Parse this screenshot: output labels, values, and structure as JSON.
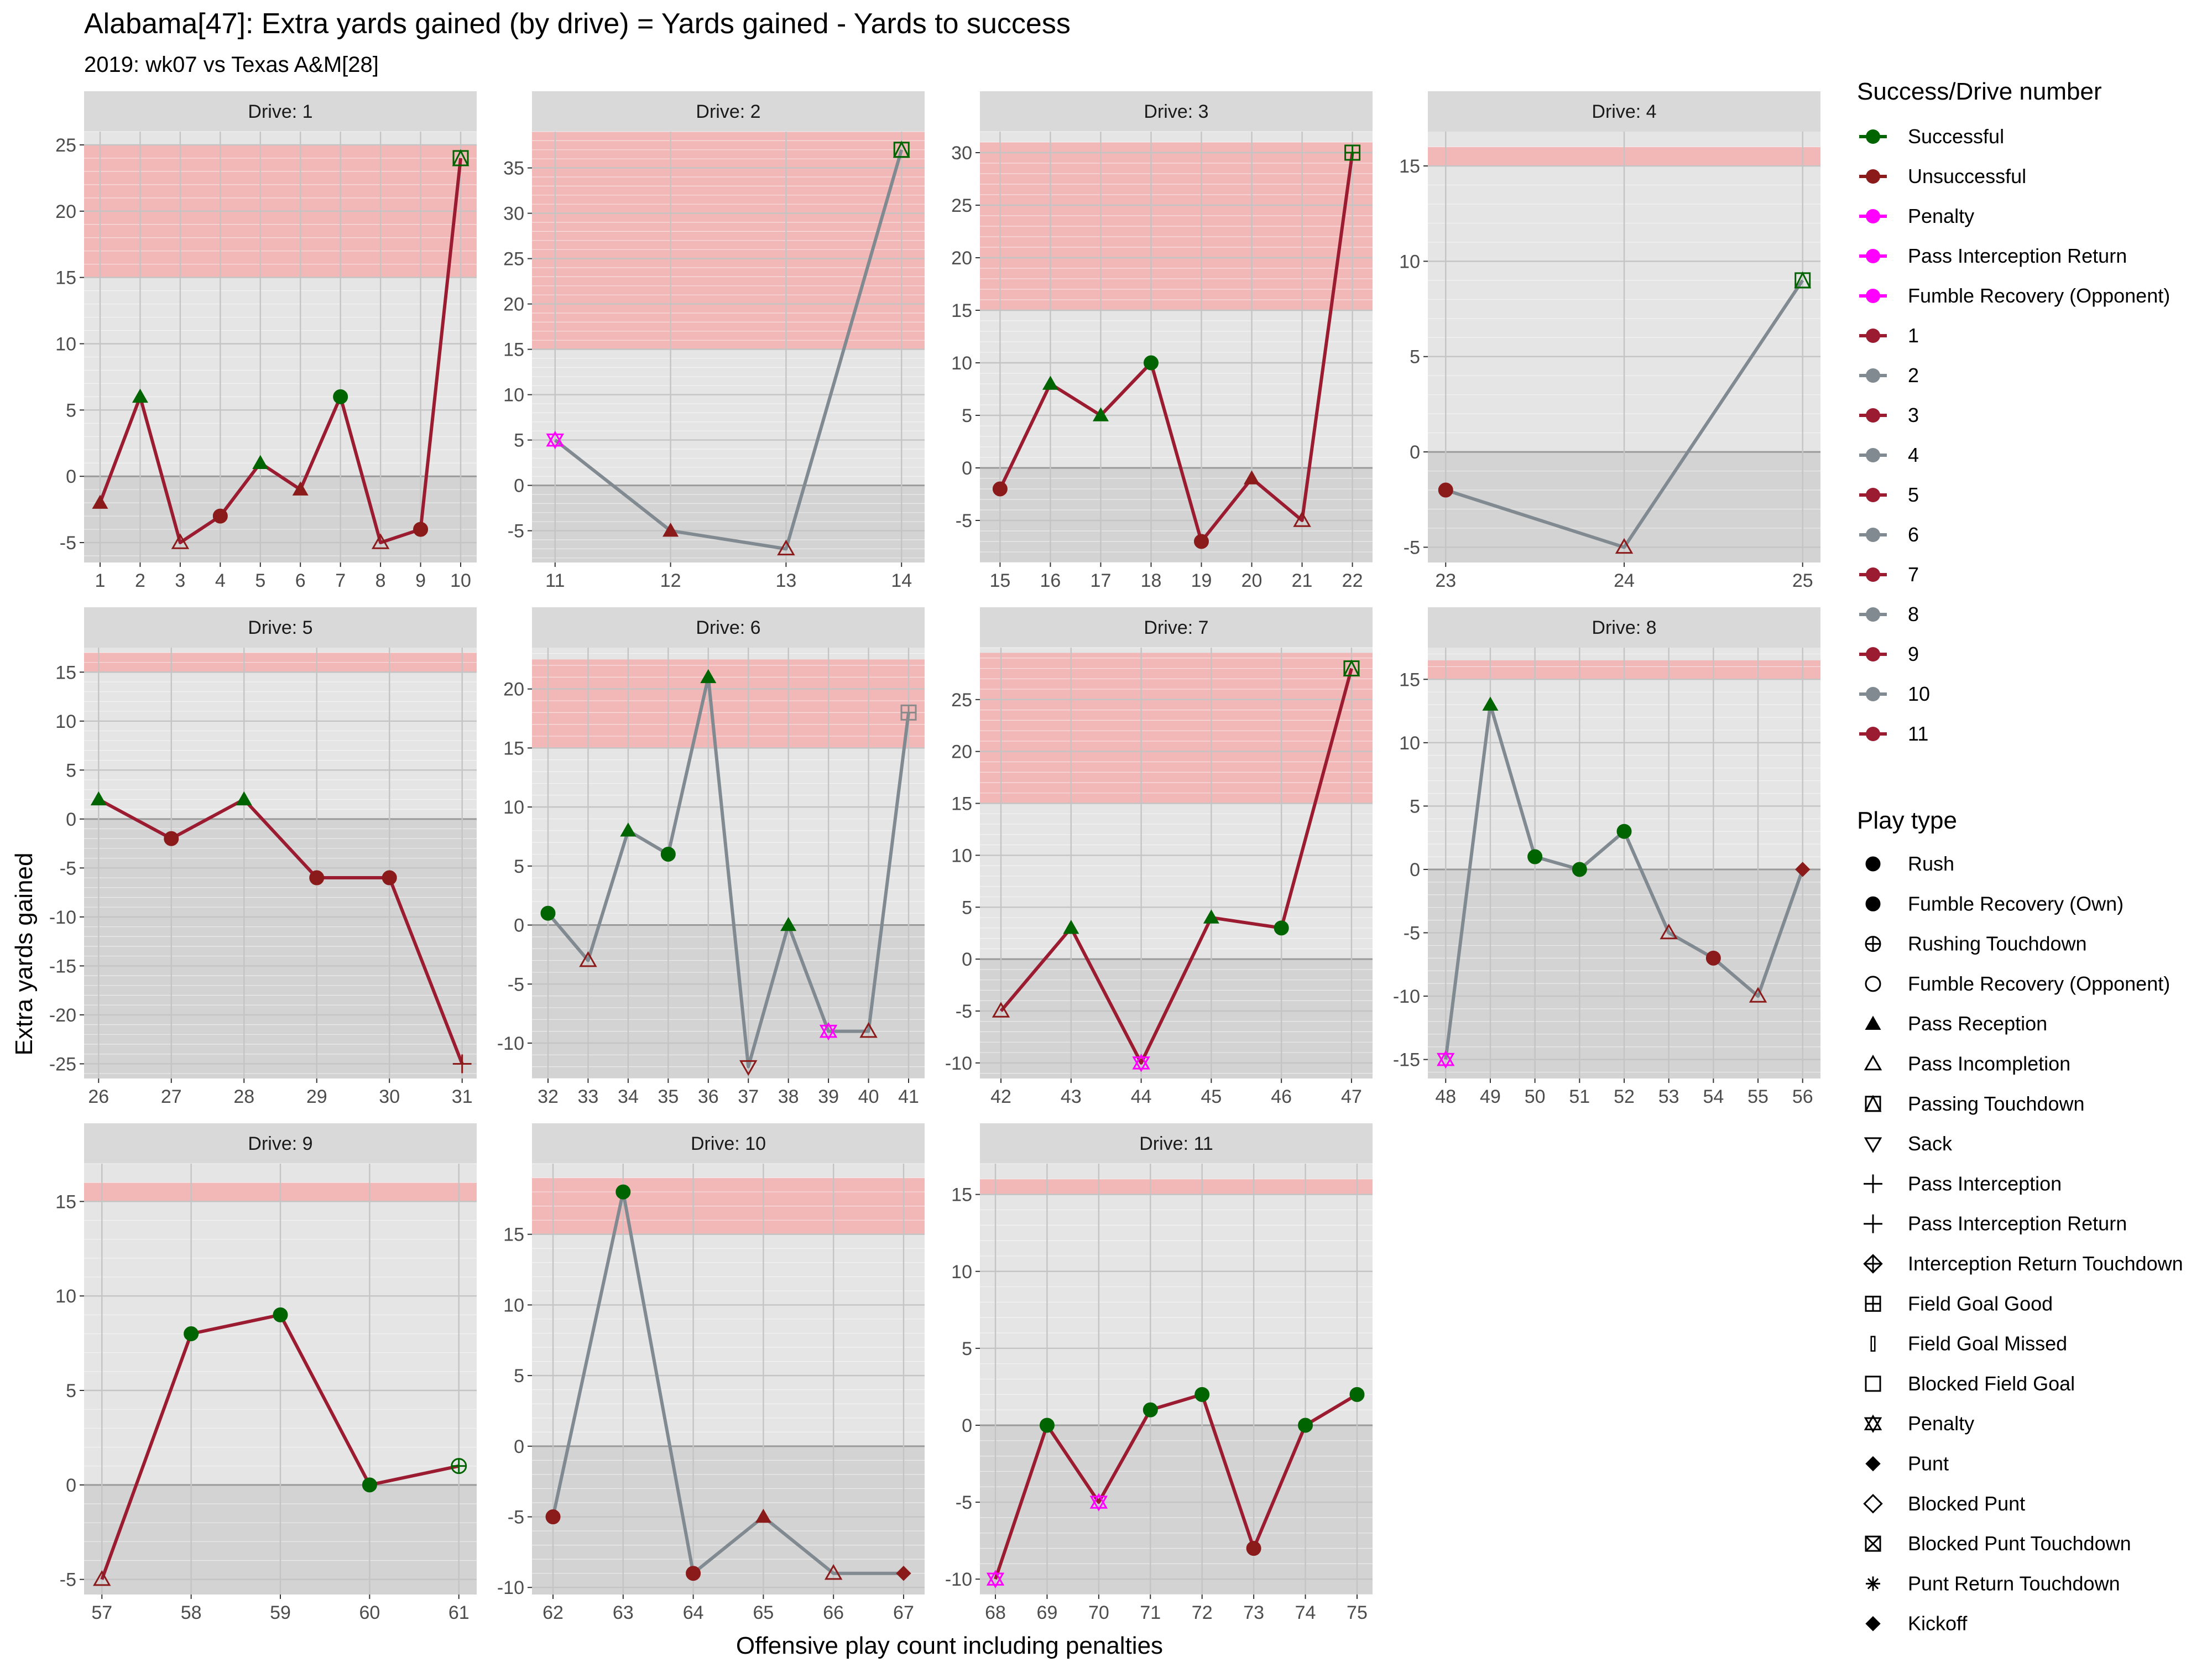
{
  "title": "Alabama[47]: Extra yards gained (by drive) = Yards gained - Yards to success",
  "subtitle": "2019: wk07 vs Texas A&M[28]",
  "xlabel": "Offensive play count including penalties",
  "ylabel": "Extra yards gained",
  "colors": {
    "successful": "#006400",
    "unsuccessful": "#8B1A1A",
    "penalty": "#FF00FF",
    "odd_drive_line": "#9B1B30",
    "even_drive_line": "#808A90",
    "panel_bg": "#E5E5E5",
    "strip_bg": "#D9D9D9",
    "success_band": "#F2B8B8",
    "below_zero": "#D3D3D3"
  },
  "legend": {
    "success_title": "Success/Drive number",
    "success_items": [
      {
        "label": "Successful",
        "color": "#006400",
        "dot": true
      },
      {
        "label": "Unsuccessful",
        "color": "#8B1A1A",
        "dot": true
      },
      {
        "label": "Penalty",
        "color": "#FF00FF",
        "dot": true
      },
      {
        "label": "Pass Interception Return",
        "color": "#FF00FF",
        "dot": true
      },
      {
        "label": "Fumble Recovery (Opponent)",
        "color": "#FF00FF",
        "dot": true
      },
      {
        "label": "1",
        "color": "#9B1B30",
        "dot": true
      },
      {
        "label": "2",
        "color": "#808A90",
        "dot": true
      },
      {
        "label": "3",
        "color": "#9B1B30",
        "dot": true
      },
      {
        "label": "4",
        "color": "#808A90",
        "dot": true
      },
      {
        "label": "5",
        "color": "#9B1B30",
        "dot": true
      },
      {
        "label": "6",
        "color": "#808A90",
        "dot": true
      },
      {
        "label": "7",
        "color": "#9B1B30",
        "dot": true
      },
      {
        "label": "8",
        "color": "#808A90",
        "dot": true
      },
      {
        "label": "9",
        "color": "#9B1B30",
        "dot": true
      },
      {
        "label": "10",
        "color": "#808A90",
        "dot": true
      },
      {
        "label": "11",
        "color": "#9B1B30",
        "dot": true
      }
    ],
    "playtype_title": "Play type",
    "playtype_items": [
      {
        "label": "Rush",
        "shape": "circle"
      },
      {
        "label": "Fumble Recovery (Own)",
        "shape": "circle"
      },
      {
        "label": "Rushing Touchdown",
        "shape": "circleplus"
      },
      {
        "label": "Fumble Recovery (Opponent)",
        "shape": "circleopen"
      },
      {
        "label": "Pass Reception",
        "shape": "triangle"
      },
      {
        "label": "Pass Incompletion",
        "shape": "triangleopen"
      },
      {
        "label": "Passing Touchdown",
        "shape": "trianglesquare"
      },
      {
        "label": "Sack",
        "shape": "triangledown"
      },
      {
        "label": "Pass Interception",
        "shape": "plus"
      },
      {
        "label": "Pass Interception Return",
        "shape": "plus"
      },
      {
        "label": "Interception Return Touchdown",
        "shape": "diamondplus"
      },
      {
        "label": "Field Goal Good",
        "shape": "squareplus"
      },
      {
        "label": "Field Goal Missed",
        "shape": "bar"
      },
      {
        "label": "Blocked Field Goal",
        "shape": "squareopen"
      },
      {
        "label": "Penalty",
        "shape": "star"
      },
      {
        "label": "Punt",
        "shape": "diamond"
      },
      {
        "label": "Blocked Punt",
        "shape": "diamondopen"
      },
      {
        "label": "Blocked Punt Touchdown",
        "shape": "squarecross"
      },
      {
        "label": "Punt Return Touchdown",
        "shape": "asterisk"
      },
      {
        "label": "Kickoff",
        "shape": "diamond"
      }
    ]
  },
  "chart_data": {
    "type": "line",
    "facet_label_prefix": "Drive: ",
    "success_band_from": 15,
    "panels": [
      {
        "drive": 1,
        "strip": "Drive: 1",
        "ylim": [
          -6.5,
          26
        ],
        "yticks": [
          -5,
          0,
          5,
          10,
          15,
          20,
          25
        ],
        "xlim": [
          0.6,
          10.4
        ],
        "xticks": [
          1,
          2,
          3,
          4,
          5,
          6,
          7,
          8,
          9,
          10
        ],
        "band_top": 25,
        "points": [
          {
            "x": 1,
            "y": -2,
            "result": "unsuccessful",
            "play": "triangle"
          },
          {
            "x": 2,
            "y": 6,
            "result": "successful",
            "play": "triangle"
          },
          {
            "x": 3,
            "y": -5,
            "result": "unsuccessful",
            "play": "triangleopen"
          },
          {
            "x": 4,
            "y": -3,
            "result": "unsuccessful",
            "play": "circle"
          },
          {
            "x": 5,
            "y": 1,
            "result": "successful",
            "play": "triangle"
          },
          {
            "x": 6,
            "y": -1,
            "result": "unsuccessful",
            "play": "triangle"
          },
          {
            "x": 7,
            "y": 6,
            "result": "successful",
            "play": "circle"
          },
          {
            "x": 8,
            "y": -5,
            "result": "unsuccessful",
            "play": "triangleopen"
          },
          {
            "x": 9,
            "y": -4,
            "result": "unsuccessful",
            "play": "circle"
          },
          {
            "x": 10,
            "y": 24,
            "result": "successful",
            "play": "trianglesquare"
          }
        ]
      },
      {
        "drive": 2,
        "strip": "Drive: 2",
        "ylim": [
          -8.5,
          39
        ],
        "yticks": [
          -5,
          0,
          5,
          10,
          15,
          20,
          25,
          30,
          35
        ],
        "xlim": [
          10.8,
          14.2
        ],
        "xticks": [
          11,
          12,
          13,
          14
        ],
        "band_top": 39,
        "points": [
          {
            "x": 11,
            "y": 5,
            "result": "penalty",
            "play": "star"
          },
          {
            "x": 12,
            "y": -5,
            "result": "unsuccessful",
            "play": "triangle"
          },
          {
            "x": 13,
            "y": -7,
            "result": "unsuccessful",
            "play": "triangleopen"
          },
          {
            "x": 14,
            "y": 37,
            "result": "successful",
            "play": "trianglesquare"
          }
        ]
      },
      {
        "drive": 3,
        "strip": "Drive: 3",
        "ylim": [
          -9,
          32
        ],
        "yticks": [
          -5,
          0,
          5,
          10,
          15,
          20,
          25,
          30
        ],
        "xlim": [
          14.6,
          22.4
        ],
        "xticks": [
          15,
          16,
          17,
          18,
          19,
          20,
          21,
          22
        ],
        "band_top": 31,
        "points": [
          {
            "x": 15,
            "y": -2,
            "result": "unsuccessful",
            "play": "circle"
          },
          {
            "x": 16,
            "y": 8,
            "result": "successful",
            "play": "triangle"
          },
          {
            "x": 17,
            "y": 5,
            "result": "successful",
            "play": "triangle"
          },
          {
            "x": 18,
            "y": 10,
            "result": "successful",
            "play": "circle"
          },
          {
            "x": 19,
            "y": -7,
            "result": "unsuccessful",
            "play": "circle"
          },
          {
            "x": 20,
            "y": -1,
            "result": "unsuccessful",
            "play": "triangle"
          },
          {
            "x": 21,
            "y": -5,
            "result": "unsuccessful",
            "play": "triangleopen"
          },
          {
            "x": 22,
            "y": 30,
            "result": "successful",
            "play": "squareplus"
          }
        ]
      },
      {
        "drive": 4,
        "strip": "Drive: 4",
        "ylim": [
          -5.8,
          16.8
        ],
        "yticks": [
          -5,
          0,
          5,
          10,
          15
        ],
        "xlim": [
          22.9,
          25.1
        ],
        "xticks": [
          23,
          24,
          25
        ],
        "band_top": 16,
        "points": [
          {
            "x": 23,
            "y": -2,
            "result": "unsuccessful",
            "play": "circle"
          },
          {
            "x": 24,
            "y": -5,
            "result": "unsuccessful",
            "play": "triangleopen"
          },
          {
            "x": 25,
            "y": 9,
            "result": "successful",
            "play": "trianglesquare"
          }
        ]
      },
      {
        "drive": 5,
        "strip": "Drive: 5",
        "ylim": [
          -26.5,
          17.5
        ],
        "yticks": [
          -25,
          -20,
          -15,
          -10,
          -5,
          0,
          5,
          10,
          15
        ],
        "xlim": [
          25.8,
          31.2
        ],
        "xticks": [
          26,
          27,
          28,
          29,
          30,
          31
        ],
        "band_top": 17,
        "points": [
          {
            "x": 26,
            "y": 2,
            "result": "successful",
            "play": "triangle"
          },
          {
            "x": 27,
            "y": -2,
            "result": "unsuccessful",
            "play": "circle"
          },
          {
            "x": 28,
            "y": 2,
            "result": "successful",
            "play": "triangle"
          },
          {
            "x": 29,
            "y": -6,
            "result": "unsuccessful",
            "play": "circle"
          },
          {
            "x": 30,
            "y": -6,
            "result": "unsuccessful",
            "play": "circle"
          },
          {
            "x": 31,
            "y": -25,
            "result": "unsuccessful",
            "play": "plus"
          }
        ]
      },
      {
        "drive": 6,
        "strip": "Drive: 6",
        "ylim": [
          -13,
          23.5
        ],
        "yticks": [
          -10,
          -5,
          0,
          5,
          10,
          15,
          20
        ],
        "xlim": [
          31.6,
          41.4
        ],
        "xticks": [
          32,
          33,
          34,
          35,
          36,
          37,
          38,
          39,
          40,
          41
        ],
        "band_top": 22.5,
        "points": [
          {
            "x": 32,
            "y": 1,
            "result": "successful",
            "play": "circle"
          },
          {
            "x": 33,
            "y": -3,
            "result": "unsuccessful",
            "play": "triangleopen"
          },
          {
            "x": 34,
            "y": 8,
            "result": "successful",
            "play": "triangle"
          },
          {
            "x": 35,
            "y": 6,
            "result": "successful",
            "play": "circle"
          },
          {
            "x": 36,
            "y": 21,
            "result": "successful",
            "play": "triangle"
          },
          {
            "x": 37,
            "y": -12,
            "result": "unsuccessful",
            "play": "triangledown"
          },
          {
            "x": 38,
            "y": 0,
            "result": "successful",
            "play": "triangle"
          },
          {
            "x": 39,
            "y": -9,
            "result": "penalty",
            "play": "star"
          },
          {
            "x": 40,
            "y": -9,
            "result": "unsuccessful",
            "play": "triangleopen"
          },
          {
            "x": 41,
            "y": 18,
            "result": "unsuccessful",
            "play": "squareplus"
          }
        ]
      },
      {
        "drive": 7,
        "strip": "Drive: 7",
        "ylim": [
          -11.5,
          30
        ],
        "yticks": [
          -10,
          -5,
          0,
          5,
          10,
          15,
          20,
          25
        ],
        "xlim": [
          41.7,
          47.3
        ],
        "xticks": [
          42,
          43,
          44,
          45,
          46,
          47
        ],
        "band_top": 29.5,
        "points": [
          {
            "x": 42,
            "y": -5,
            "result": "unsuccessful",
            "play": "triangleopen"
          },
          {
            "x": 43,
            "y": 3,
            "result": "successful",
            "play": "triangle"
          },
          {
            "x": 44,
            "y": -10,
            "result": "penalty",
            "play": "star"
          },
          {
            "x": 45,
            "y": 4,
            "result": "successful",
            "play": "triangle"
          },
          {
            "x": 46,
            "y": 3,
            "result": "successful",
            "play": "circle"
          },
          {
            "x": 47,
            "y": 28,
            "result": "successful",
            "play": "trianglesquare"
          }
        ]
      },
      {
        "drive": 8,
        "strip": "Drive: 8",
        "ylim": [
          -16.5,
          17.5
        ],
        "yticks": [
          -15,
          -10,
          -5,
          0,
          5,
          10,
          15
        ],
        "xlim": [
          47.6,
          56.4
        ],
        "xticks": [
          48,
          49,
          50,
          51,
          52,
          53,
          54,
          55,
          56
        ],
        "band_top": 16.5,
        "points": [
          {
            "x": 48,
            "y": -15,
            "result": "penalty",
            "play": "star"
          },
          {
            "x": 49,
            "y": 13,
            "result": "successful",
            "play": "triangle"
          },
          {
            "x": 50,
            "y": 1,
            "result": "successful",
            "play": "circle"
          },
          {
            "x": 51,
            "y": 0,
            "result": "successful",
            "play": "circle"
          },
          {
            "x": 52,
            "y": 3,
            "result": "successful",
            "play": "circle"
          },
          {
            "x": 53,
            "y": -5,
            "result": "unsuccessful",
            "play": "triangleopen"
          },
          {
            "x": 54,
            "y": -7,
            "result": "unsuccessful",
            "play": "circle"
          },
          {
            "x": 55,
            "y": -10,
            "result": "unsuccessful",
            "play": "triangleopen"
          },
          {
            "x": 56,
            "y": 0,
            "result": "unsuccessful",
            "play": "diamond"
          }
        ]
      },
      {
        "drive": 9,
        "strip": "Drive: 9",
        "ylim": [
          -5.8,
          17
        ],
        "yticks": [
          -5,
          0,
          5,
          10,
          15
        ],
        "xlim": [
          56.8,
          61.2
        ],
        "xticks": [
          57,
          58,
          59,
          60,
          61
        ],
        "band_top": 16,
        "points": [
          {
            "x": 57,
            "y": -5,
            "result": "unsuccessful",
            "play": "triangleopen"
          },
          {
            "x": 58,
            "y": 8,
            "result": "successful",
            "play": "circle"
          },
          {
            "x": 59,
            "y": 9,
            "result": "successful",
            "play": "circle"
          },
          {
            "x": 60,
            "y": 0,
            "result": "successful",
            "play": "circle"
          },
          {
            "x": 61,
            "y": 1,
            "result": "successful",
            "play": "circleplus"
          }
        ]
      },
      {
        "drive": 10,
        "strip": "Drive: 10",
        "ylim": [
          -10.5,
          20
        ],
        "yticks": [
          -10,
          -5,
          0,
          5,
          10,
          15
        ],
        "xlim": [
          61.7,
          67.3
        ],
        "xticks": [
          62,
          63,
          64,
          65,
          66,
          67
        ],
        "band_top": 19,
        "points": [
          {
            "x": 62,
            "y": -5,
            "result": "unsuccessful",
            "play": "circle"
          },
          {
            "x": 63,
            "y": 18,
            "result": "successful",
            "play": "circle"
          },
          {
            "x": 64,
            "y": -9,
            "result": "unsuccessful",
            "play": "circle"
          },
          {
            "x": 65,
            "y": -5,
            "result": "unsuccessful",
            "play": "triangle"
          },
          {
            "x": 66,
            "y": -9,
            "result": "unsuccessful",
            "play": "triangleopen"
          },
          {
            "x": 67,
            "y": -9,
            "result": "unsuccessful",
            "play": "diamond"
          }
        ]
      },
      {
        "drive": 11,
        "strip": "Drive: 11",
        "ylim": [
          -11,
          17
        ],
        "yticks": [
          -10,
          -5,
          0,
          5,
          10,
          15
        ],
        "xlim": [
          67.7,
          75.3
        ],
        "xticks": [
          68,
          69,
          70,
          71,
          72,
          73,
          74,
          75
        ],
        "band_top": 16,
        "points": [
          {
            "x": 68,
            "y": -10,
            "result": "penalty",
            "play": "star"
          },
          {
            "x": 69,
            "y": 0,
            "result": "successful",
            "play": "circle"
          },
          {
            "x": 70,
            "y": -5,
            "result": "penalty",
            "play": "star"
          },
          {
            "x": 71,
            "y": 1,
            "result": "successful",
            "play": "circle"
          },
          {
            "x": 72,
            "y": 2,
            "result": "successful",
            "play": "circle"
          },
          {
            "x": 73,
            "y": -8,
            "result": "unsuccessful",
            "play": "circle"
          },
          {
            "x": 74,
            "y": 0,
            "result": "successful",
            "play": "circle"
          },
          {
            "x": 75,
            "y": 2,
            "result": "successful",
            "play": "circle"
          }
        ]
      }
    ]
  }
}
